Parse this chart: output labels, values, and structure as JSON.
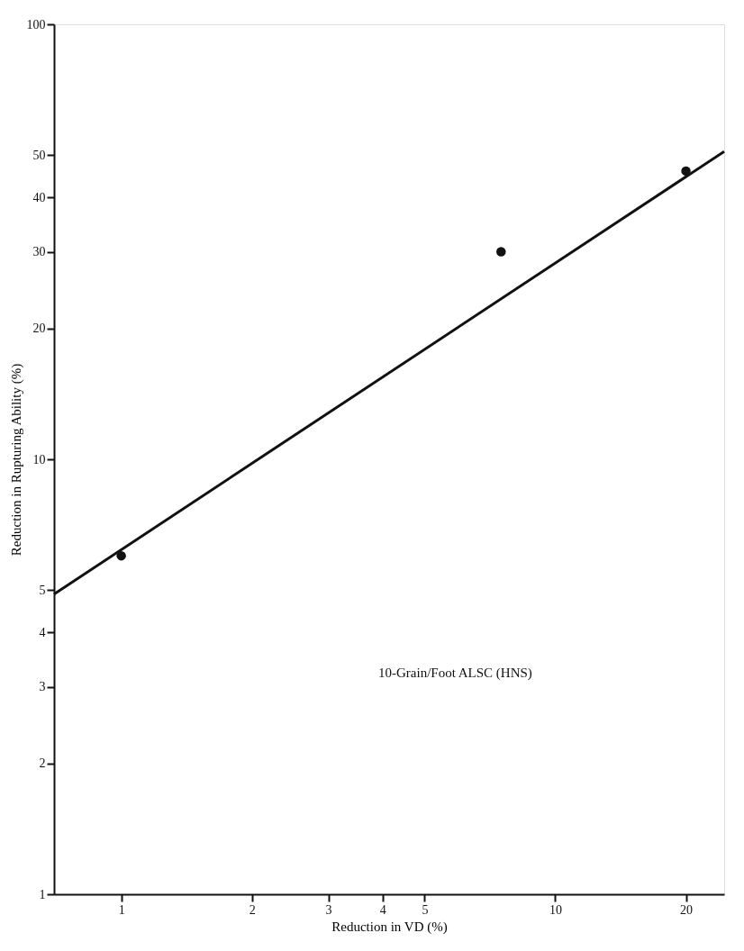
{
  "chart_data": {
    "type": "line",
    "xlabel": "Reduction in VD (%)",
    "ylabel": "Reduction in Rupturing Ability (%)",
    "log": "xy",
    "xlim": [
      0.7,
      24.5
    ],
    "ylim": [
      1,
      100
    ],
    "xticks": [
      1,
      2,
      3,
      4,
      5,
      10,
      20
    ],
    "yticks": [
      1,
      2,
      3,
      4,
      5,
      10,
      20,
      30,
      40,
      50,
      100
    ],
    "grid": false,
    "series": [
      {
        "color": "#111111",
        "x": [
          0.7,
          24.5
        ],
        "values": [
          4.9,
          51
        ],
        "marker": "none",
        "line_style": "solid"
      },
      {
        "type": "scatter",
        "color": "#111111",
        "x": [
          1,
          7.5,
          20
        ],
        "values": [
          6,
          30,
          46
        ],
        "marker": "circle"
      }
    ],
    "annotations": [
      "10-Grain/Foot ALSC (HNS)"
    ]
  }
}
